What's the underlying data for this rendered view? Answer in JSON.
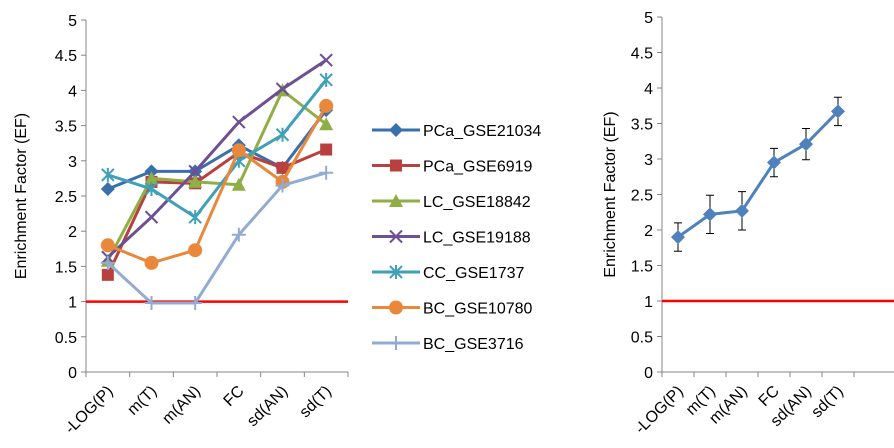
{
  "chart_data": [
    {
      "type": "line",
      "ylabel": "Enrichment Factor (EF)",
      "xlabel": "",
      "categories": [
        "-LOG(P)",
        "m(T)",
        "m(AN)",
        "FC",
        "sd(AN)",
        "sd(T)"
      ],
      "ylim": [
        0,
        5
      ],
      "yticks": [
        "0",
        "0.5",
        "1",
        "1.5",
        "2",
        "2.5",
        "3",
        "3.5",
        "4",
        "4.5",
        "5"
      ],
      "grid": false,
      "legend": "right",
      "reference_line": {
        "value": 1,
        "color": "#ff0000"
      },
      "series": [
        {
          "name": "PCa_GSE21034",
          "color": "#3a6fae",
          "marker": "diamond",
          "values": [
            2.6,
            2.85,
            2.85,
            3.22,
            2.9,
            3.72
          ]
        },
        {
          "name": "PCa_GSE6919",
          "color": "#b8413f",
          "marker": "square",
          "values": [
            1.38,
            2.7,
            2.68,
            3.12,
            2.9,
            3.16
          ]
        },
        {
          "name": "LC_GSE18842",
          "color": "#8fae45",
          "marker": "triangle",
          "values": [
            1.58,
            2.75,
            2.7,
            2.66,
            4.0,
            3.52
          ]
        },
        {
          "name": "LC_GSE19188",
          "color": "#6e4f93",
          "marker": "x",
          "values": [
            1.63,
            2.2,
            2.85,
            3.55,
            4.02,
            4.43
          ]
        },
        {
          "name": "CC_GSE1737",
          "color": "#3fa0b8",
          "marker": "asterisk",
          "values": [
            2.8,
            2.6,
            2.2,
            3.0,
            3.37,
            4.15
          ]
        },
        {
          "name": "BC_GSE10780",
          "color": "#e9883a",
          "marker": "circle",
          "values": [
            1.8,
            1.55,
            1.73,
            3.15,
            2.7,
            3.78
          ]
        },
        {
          "name": "BC_GSE3716",
          "color": "#93abd2",
          "marker": "plus",
          "values": [
            1.55,
            0.98,
            0.98,
            1.95,
            2.65,
            2.83
          ]
        }
      ]
    },
    {
      "type": "line",
      "ylabel": "Enrichment Factor (EF)",
      "xlabel": "",
      "categories": [
        "-LOG(P)",
        "m(T)",
        "m(AN)",
        "FC",
        "sd(AN)",
        "sd(T)"
      ],
      "ylim": [
        0,
        5
      ],
      "yticks": [
        "0",
        "0.5",
        "1",
        "1.5",
        "2",
        "2.5",
        "3",
        "3.5",
        "4",
        "4.5",
        "5"
      ],
      "grid": false,
      "reference_line": {
        "value": 1,
        "color": "#ff0000"
      },
      "series": [
        {
          "name": "",
          "color": "#4f81bd",
          "marker": "diamond",
          "values": [
            1.9,
            2.22,
            2.27,
            2.95,
            3.21,
            3.67
          ],
          "error": [
            0.2,
            0.27,
            0.27,
            0.2,
            0.22,
            0.2
          ]
        }
      ]
    }
  ]
}
